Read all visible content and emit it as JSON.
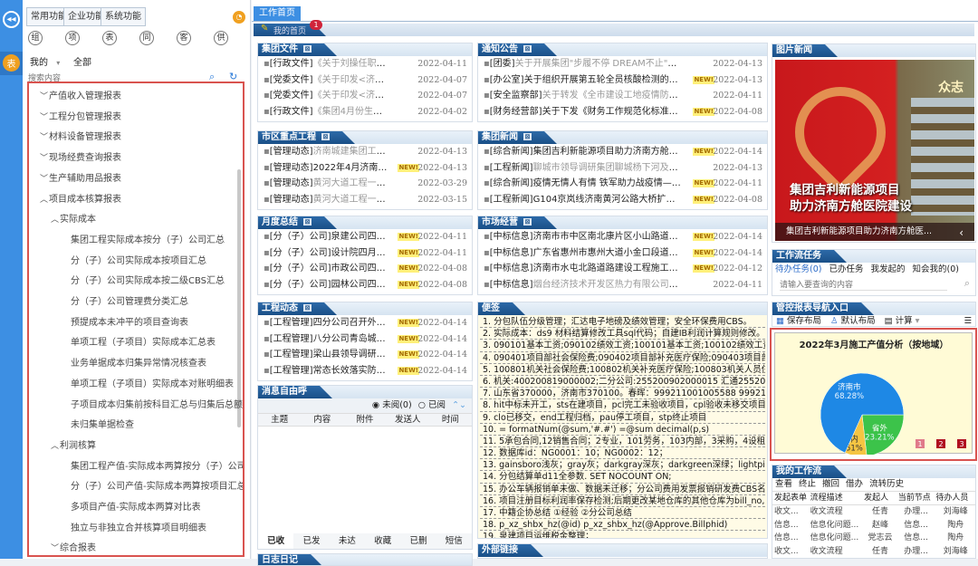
{
  "strip": {
    "collapse_icon": "double-chevron-left-icon",
    "report_badge": "表"
  },
  "sidebar": {
    "tabs": [
      "常用功能",
      "企业功能",
      "系统功能"
    ],
    "clock_icon": "clock-icon",
    "shortcuts": [
      "组",
      "项",
      "表",
      "同",
      "客",
      "供"
    ],
    "filter_mine": "我的",
    "filter_all": "全部",
    "search_placeholder": "搜索内容",
    "tree": [
      {
        "level": 1,
        "open": false,
        "label": "产值收入管理报表"
      },
      {
        "level": 1,
        "open": false,
        "label": "工程分包管理报表"
      },
      {
        "level": 1,
        "open": false,
        "label": "材料设备管理报表"
      },
      {
        "level": 1,
        "open": false,
        "label": "现场经费查询报表"
      },
      {
        "level": 1,
        "open": false,
        "label": "生产辅助用品报表"
      },
      {
        "level": 1,
        "open": true,
        "label": "项目成本核算报表"
      },
      {
        "level": 2,
        "open": true,
        "label": "实际成本"
      },
      {
        "level": 3,
        "label": "集团工程实际成本按分（子）公司汇总"
      },
      {
        "level": 3,
        "label": "分（子）公司实际成本按项目汇总"
      },
      {
        "level": 3,
        "label": "分（子）公司实际成本按二级CBS汇总"
      },
      {
        "level": 3,
        "label": "分（子）公司管理费分类汇总"
      },
      {
        "level": 3,
        "label": "预提成本未冲平的项目查询表"
      },
      {
        "level": 3,
        "label": "单项工程（子项目）实际成本汇总表"
      },
      {
        "level": 3,
        "label": "业务单据成本归集异常情况核查表"
      },
      {
        "level": 3,
        "label": "单项工程（子项目）实际成本对账明细表"
      },
      {
        "level": 3,
        "label": "子项目成本归集前按科目汇总与归集后总额核对表"
      },
      {
        "level": 3,
        "label": "未归集单据检查"
      },
      {
        "level": 2,
        "open": true,
        "label": "利润核算"
      },
      {
        "level": 3,
        "label": "集团工程产值-实际成本两算按分（子）公司汇总"
      },
      {
        "level": 3,
        "label": "分（子）公司产值-实际成本两算按项目汇总"
      },
      {
        "level": 3,
        "label": "多项目产值-实际成本两算对比表"
      },
      {
        "level": 3,
        "label": "独立与非独立合并核算项目明细表"
      },
      {
        "level": 2,
        "open": false,
        "label": "综合报表"
      }
    ]
  },
  "main": {
    "tab": "工作首页",
    "home_label": "我的首页",
    "home_badge": "1",
    "sections": {
      "group_docs": {
        "title": "集团文件",
        "items": [
          {
            "tag": "[行政文件]",
            "text": "《关于刘操任职的决定》济城建...",
            "date": "2022-04-11",
            "read": true
          },
          {
            "tag": "[党委文件]",
            "text": "《关于印发<济南城建集团2022...",
            "date": "2022-04-07",
            "read": true
          },
          {
            "tag": "[党委文件]",
            "text": "《关于印发<济南城建集团有限...",
            "date": "2022-04-07",
            "read": true
          },
          {
            "tag": "[行政文件]",
            "text": "《集团4月份生产经营工作会议...",
            "date": "2022-04-02",
            "read": true
          },
          {
            "tag": "[行政文件]",
            "text": "《关于2022年4月份生产计划的...",
            "date": "2022-04-01",
            "read": true
          }
        ]
      },
      "key_projects": {
        "title": "市区重点工程",
        "items": [
          {
            "tag": "[管理动态]",
            "text": "济南城建集团工程管理部工作会...",
            "date": "2022-04-13",
            "read": true
          },
          {
            "tag": "[管理动态]",
            "text": "2022年4月济南市区在建项目信...",
            "date": "2022-04-13",
            "new": true
          },
          {
            "tag": "[管理动态]",
            "text": "黄河大道工程一期二标召开施工...",
            "date": "2022-03-29",
            "read": true
          },
          {
            "tag": "[管理动态]",
            "text": "黄河大道工程一期二标召开施工...",
            "date": "2022-03-15",
            "read": true
          },
          {
            "tag": "[管理动态]",
            "text": "2022年3月济南市区在建项目信...",
            "date": "2022-03-13",
            "read": true
          }
        ]
      },
      "monthly": {
        "title": "月度总结",
        "items": [
          {
            "tag": "[分（子）公司]",
            "text": "泉建公司四月份生产会会议...",
            "date": "2022-04-11",
            "new": true
          },
          {
            "tag": "[分（子）公司]",
            "text": "设计院四月份生产会会议纪要",
            "date": "2022-04-11",
            "new": true
          },
          {
            "tag": "[分（子）公司]",
            "text": "市政公司四月份生产会会议...",
            "date": "2022-04-08",
            "new": true
          },
          {
            "tag": "[分（子）公司]",
            "text": "园林公司四月份生产会会议...",
            "date": "2022-04-08",
            "new": true
          },
          {
            "tag": "[分（子）公司]",
            "text": "六分公司四月份生产会会议...",
            "date": "2022-04-07",
            "read": true
          }
        ]
      },
      "engineering": {
        "title": "工程动态",
        "items": [
          {
            "tag": "[工程管理]",
            "text": "四分公司召开外埠工程视频会议",
            "date": "2022-04-14",
            "new": true
          },
          {
            "tag": "[工程管理]",
            "text": "八分公司青岛城阳污水四期工程...",
            "date": "2022-04-14",
            "new": true
          },
          {
            "tag": "[工程管理]",
            "text": "梁山县领导调研梁山人民中路西...",
            "date": "2022-04-14",
            "new": true
          },
          {
            "tag": "[工程管理]",
            "text": "常态长效落实防控举措 多效并...",
            "date": "2022-04-14",
            "new": true
          },
          {
            "tag": "[工程管理]",
            "text": "一分公司烟台滨海路项目进行水...",
            "date": "2022-04-14",
            "new": true
          }
        ]
      },
      "notices": {
        "title": "通知公告",
        "items": [
          {
            "tag": "[团委]",
            "text": "关于开展集团\"步履不停 DREAM不止\"职工线上徒步挑战军历...",
            "date": "2022-04-13",
            "read": true
          },
          {
            "tag": "[办公室]",
            "text": "关于组织开展第五轮全员核酸检测的通知",
            "date": "2022-04-13",
            "new": true
          },
          {
            "tag": "[安全监察部]",
            "text": "关于转发《全市建设工地疫情防控工作方案（试行）...",
            "date": "2022-04-11",
            "read": true
          },
          {
            "tag": "[财务经营部]",
            "text": "关于下发《财务工作规范化标准》的通知",
            "date": "2022-04-08",
            "new": true
          },
          {
            "tag": "[安全监察部]",
            "text": "关于转发济南城市建设集团有限公司《关于做好集团2...",
            "date": "2022-04-08",
            "new": true
          }
        ]
      },
      "group_news": {
        "title": "集团新闻",
        "items": [
          {
            "tag": "[综合新闻]",
            "text": "集团吉利新能源项目助力济南方舱医院建设",
            "date": "2022-04-14",
            "new": true
          },
          {
            "tag": "[工程新闻]",
            "text": "聊城市领导调研集团聊城杨下河及肉山片区路网建设工...",
            "date": "2022-04-13",
            "read": true
          },
          {
            "tag": "[综合新闻]",
            "text": "疫情无情人有情 铁军助力战疫情—济南城建集团支援燕...",
            "date": "2022-04-11",
            "new": true
          },
          {
            "tag": "[工程新闻]",
            "text": "G104京岚线济南黄河公路大桥扩建工程率先完成全桥首...",
            "date": "2022-04-08",
            "new": true
          },
          {
            "tag": "[综合新闻]",
            "text": "集团召开2022年党建纪检监察工作会议",
            "date": "2022-04-08",
            "new": true
          }
        ]
      },
      "market": {
        "title": "市场经营",
        "items": [
          {
            "tag": "[中标信息]",
            "text": "济南市市中区南北康片区小山路道路建设工程项目工程...",
            "date": "2022-04-14",
            "new": true
          },
          {
            "tag": "[中标信息]",
            "text": "广东省惠州市惠州大道小金口段道路升级改造项目中标",
            "date": "2022-04-14",
            "new": true
          },
          {
            "tag": "[中标信息]",
            "text": "济南市水屯北路道路建设工程施工中标",
            "date": "2022-04-12",
            "new": true
          },
          {
            "tag": "[中标信息]",
            "text": "烟台经济技术开发区热力有限公司城市供热基础设施提...",
            "date": "2022-04-11",
            "read": true
          },
          {
            "tag": "[经营管理]",
            "text": "4月11日以后拟开标项目一览表",
            "date": "2022-04-08",
            "new": true
          }
        ]
      }
    },
    "new_label": "NEW!",
    "messages": {
      "title": "消息自由呼",
      "unread": "未阅(0)",
      "read": "已阅",
      "columns": [
        "主题",
        "内容",
        "附件",
        "发送人",
        "时间"
      ],
      "tabs": [
        "已收",
        "已发",
        "未达",
        "收藏",
        "已删",
        "短信"
      ]
    },
    "daily_log": {
      "title": "日志日记"
    },
    "memo": {
      "title": "便签",
      "lines": [
        "1.  分包队伍分级管理；汇达电子地磅及绩效管理；安全环保费用CBS。",
        "2.  实际成本：ds9  材料结算修改工具sql代码；自建IB利润计算规则修改。投资项",
        "3.  090101基本工资;090102绩效工资;100101基本工资;100102绩效工资",
        "4.  090401项目部社会保险费;090402项目部补充医疗保险;090403项目部住房公积",
        "5.  100801机关社会保险费;100802机关补充医疗保险;100803机关人员住房公积金",
        "6.   机关:400200819000002;二分公司:255200902000015  汇通25520090200001",
        "7.  山东省370000，济南市370100。春晖：999211001005588    999211001005",
        "8.  hit中标未开工，sts在建项目，pcl完工未验收项目，cpl验收未移交项目",
        "9.  clo已移交，end工程归档，pau停工项目，stp终止项目",
        "10. = formatNum(@sum,'#.#')    =@sum      decimal(p,s)",
        "11. 5承包合同,12销售合同；2专业，101劳务，103内部，3采购，4设租",
        "12. 数据库id：NG0001：10；NG0002：12；",
        "13. gainsboro浅灰；gray灰；darkgray深灰；darkgreen深绿；lightpink浅红",
        "14. 分包结算单d11全参数.  SET NOCOUNT ON;",
        "15. 办公车辆报销单未做、数据未迁移；分公司费用发票报销研发费CBS名称更改",
        "16. 项目注册目标利润率保存检测;后期更改某地仓库的其他仓库为bill_no,及派生仓",
        "17. 中籍企协总结 ①经验 ②分公司总结",
        "18. p_xz_shbx_hz(@id)     p_xz_shbx_hz(@Approve.Billphid)",
        "19. 泉建项目运维税金整理；"
      ]
    },
    "links": {
      "title": "外部链接"
    },
    "photo_news": {
      "title": "图片新闻",
      "headline_line1": "集团吉利新能源项目",
      "headline_line2": "助力济南方舱医院建设",
      "caption": "集团吉利新能源项目助力济南方舱医...",
      "image_sign": "众志",
      "prev_icon": "chevron-left-icon"
    },
    "workflow_tasks": {
      "title": "工作流任务",
      "tabs": [
        "待办任务(0)",
        "已办任务",
        "我发起的",
        "知会我的(0)"
      ],
      "search_placeholder": "请输入要查询的内容"
    },
    "report_nav": {
      "title": "管控报表导航入口",
      "save_layout": "保存布局",
      "default_layout": "默认布局",
      "calc": "计算"
    },
    "my_workflow": {
      "title": "我的工作流",
      "actions": [
        "查看",
        "终止",
        "撤回",
        "借办",
        "流转历史"
      ],
      "columns": [
        "发起表单",
        "流程描述",
        "发起人",
        "当前节点",
        "待办人员"
      ],
      "rows": [
        [
          "收文...",
          "收文流程",
          "任青",
          "办理...",
          "刘海峰"
        ],
        [
          "信息...",
          "信息化问题...",
          "赵峰",
          "信息...",
          "陶舟"
        ],
        [
          "信息...",
          "信息化问题...",
          "党志云",
          "信息...",
          "陶舟"
        ],
        [
          "收文...",
          "收文流程",
          "任青",
          "办理...",
          "刘海峰"
        ],
        [
          "部门...",
          "部门会商流...",
          "刘海峰",
          "流程...",
          "刘海峰"
        ]
      ]
    }
  },
  "chart_data": {
    "type": "pie",
    "title": "2022年3月施工产值分析（按地域）",
    "slices": [
      {
        "label": "济南市",
        "value": 68.28,
        "color": "#1e88e5"
      },
      {
        "label": "省外",
        "value": 23.21,
        "color": "#3cc34a"
      },
      {
        "label": "省内",
        "value": 8.51,
        "color": "#f5c542"
      }
    ],
    "pager": [
      "1",
      "2",
      "3"
    ],
    "active_page": "1"
  },
  "colors": {
    "accent": "#3d8fe3",
    "header": "#1a4f87",
    "highlight": "#d9534f",
    "chart_bg": "#fffbd6"
  }
}
